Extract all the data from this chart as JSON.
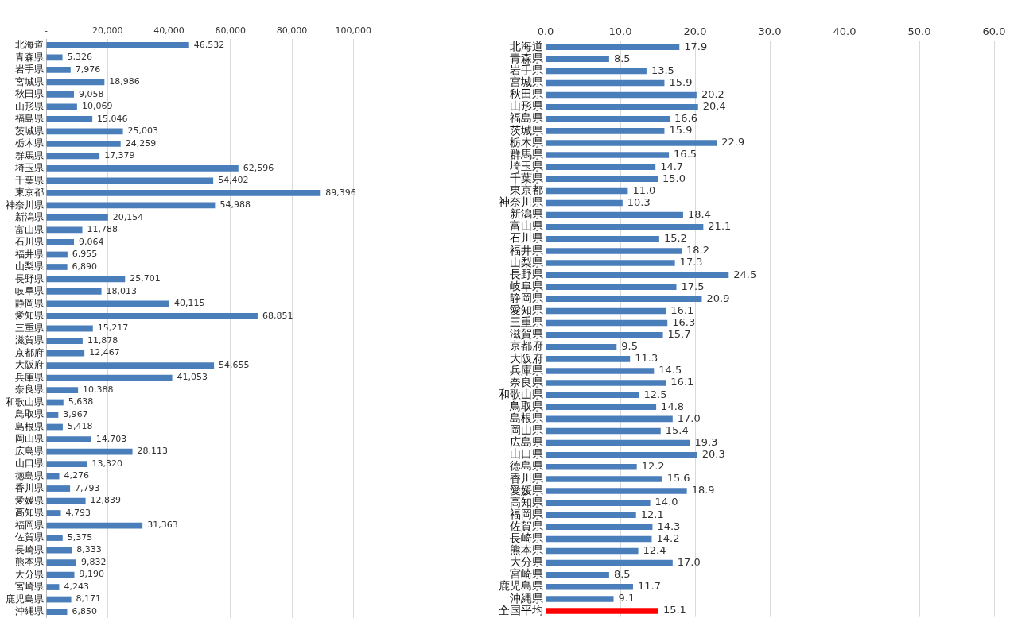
{
  "chart_data": [
    {
      "type": "bar",
      "orientation": "horizontal",
      "grid": "x",
      "color": "#4a7ebb",
      "categories": [
        "北海道",
        "青森県",
        "岩手県",
        "宮城県",
        "秋田県",
        "山形県",
        "福島県",
        "茨城県",
        "栃木県",
        "群馬県",
        "埼玉県",
        "千葉県",
        "東京都",
        "神奈川県",
        "新潟県",
        "富山県",
        "石川県",
        "福井県",
        "山梨県",
        "長野県",
        "岐阜県",
        "静岡県",
        "愛知県",
        "三重県",
        "滋賀県",
        "京都府",
        "大阪府",
        "兵庫県",
        "奈良県",
        "和歌山県",
        "鳥取県",
        "島根県",
        "岡山県",
        "広島県",
        "山口県",
        "徳島県",
        "香川県",
        "愛媛県",
        "高知県",
        "福岡県",
        "佐賀県",
        "長崎県",
        "熊本県",
        "大分県",
        "宮崎県",
        "鹿児島県",
        "沖縄県"
      ],
      "values": [
        46532,
        5326,
        7976,
        18986,
        9058,
        10069,
        15046,
        25003,
        24259,
        17379,
        62596,
        54402,
        89396,
        54988,
        20154,
        11788,
        9064,
        6955,
        6890,
        25701,
        18013,
        40115,
        68851,
        15217,
        11878,
        12467,
        54655,
        41053,
        10388,
        5638,
        3967,
        5418,
        14703,
        28113,
        13320,
        4276,
        7793,
        12839,
        4793,
        31363,
        5375,
        8333,
        9832,
        9190,
        4243,
        8171,
        6850
      ],
      "value_labels": [
        "46,532",
        "5,326",
        "7,976",
        "18,986",
        "9,058",
        "10,069",
        "15,046",
        "25,003",
        "24,259",
        "17,379",
        "62,596",
        "54,402",
        "89,396",
        "54,988",
        "20,154",
        "11,788",
        "9,064",
        "6,955",
        "6,890",
        "25,701",
        "18,013",
        "40,115",
        "68,851",
        "15,217",
        "11,878",
        "12,467",
        "54,655",
        "41,053",
        "10,388",
        "5,638",
        "3,967",
        "5,418",
        "14,703",
        "28,113",
        "13,320",
        "4,276",
        "7,793",
        "12,839",
        "4,793",
        "31,363",
        "5,375",
        "8,333",
        "9,832",
        "9,190",
        "4,243",
        "8,171",
        "6,850"
      ],
      "xlim": [
        0,
        100000
      ],
      "xticks": [
        {
          "value": 0,
          "label": "-"
        },
        {
          "value": 20000,
          "label": "20,000"
        },
        {
          "value": 40000,
          "label": "40,000"
        },
        {
          "value": 60000,
          "label": "60,000"
        },
        {
          "value": 80000,
          "label": "80,000"
        },
        {
          "value": 100000,
          "label": "100,000"
        }
      ]
    },
    {
      "type": "bar",
      "orientation": "horizontal",
      "grid": "x",
      "categories": [
        "北海道",
        "青森県",
        "岩手県",
        "宮城県",
        "秋田県",
        "山形県",
        "福島県",
        "茨城県",
        "栃木県",
        "群馬県",
        "埼玉県",
        "千葉県",
        "東京都",
        "神奈川県",
        "新潟県",
        "富山県",
        "石川県",
        "福井県",
        "山梨県",
        "長野県",
        "岐阜県",
        "静岡県",
        "愛知県",
        "三重県",
        "滋賀県",
        "京都府",
        "大阪府",
        "兵庫県",
        "奈良県",
        "和歌山県",
        "鳥取県",
        "島根県",
        "岡山県",
        "広島県",
        "山口県",
        "徳島県",
        "香川県",
        "愛媛県",
        "高知県",
        "福岡県",
        "佐賀県",
        "長崎県",
        "熊本県",
        "大分県",
        "宮崎県",
        "鹿児島県",
        "沖縄県",
        "全国平均"
      ],
      "values": [
        17.9,
        8.5,
        13.5,
        15.9,
        20.2,
        20.4,
        16.6,
        15.9,
        22.9,
        16.5,
        14.7,
        15.0,
        11.0,
        10.3,
        18.4,
        21.1,
        15.2,
        18.2,
        17.3,
        24.5,
        17.5,
        20.9,
        16.1,
        16.3,
        15.7,
        9.5,
        11.3,
        14.5,
        16.1,
        12.5,
        14.8,
        17.0,
        15.4,
        19.3,
        20.3,
        12.2,
        15.6,
        18.9,
        14.0,
        12.1,
        14.3,
        14.2,
        12.4,
        17.0,
        8.5,
        11.7,
        9.1,
        15.1
      ],
      "value_labels": [
        "17.9",
        "8.5",
        "13.5",
        "15.9",
        "20.2",
        "20.4",
        "16.6",
        "15.9",
        "22.9",
        "16.5",
        "14.7",
        "15.0",
        "11.0",
        "10.3",
        "18.4",
        "21.1",
        "15.2",
        "18.2",
        "17.3",
        "24.5",
        "17.5",
        "20.9",
        "16.1",
        "16.3",
        "15.7",
        "9.5",
        "11.3",
        "14.5",
        "16.1",
        "12.5",
        "14.8",
        "17.0",
        "15.4",
        "19.3",
        "20.3",
        "12.2",
        "15.6",
        "18.9",
        "14.0",
        "12.1",
        "14.3",
        "14.2",
        "12.4",
        "17.0",
        "8.5",
        "11.7",
        "9.1",
        "15.1"
      ],
      "colors": [
        "#4a7ebb",
        "#4a7ebb",
        "#4a7ebb",
        "#4a7ebb",
        "#4a7ebb",
        "#4a7ebb",
        "#4a7ebb",
        "#4a7ebb",
        "#4a7ebb",
        "#4a7ebb",
        "#4a7ebb",
        "#4a7ebb",
        "#4a7ebb",
        "#4a7ebb",
        "#4a7ebb",
        "#4a7ebb",
        "#4a7ebb",
        "#4a7ebb",
        "#4a7ebb",
        "#4a7ebb",
        "#4a7ebb",
        "#4a7ebb",
        "#4a7ebb",
        "#4a7ebb",
        "#4a7ebb",
        "#4a7ebb",
        "#4a7ebb",
        "#4a7ebb",
        "#4a7ebb",
        "#4a7ebb",
        "#4a7ebb",
        "#4a7ebb",
        "#4a7ebb",
        "#4a7ebb",
        "#4a7ebb",
        "#4a7ebb",
        "#4a7ebb",
        "#4a7ebb",
        "#4a7ebb",
        "#4a7ebb",
        "#4a7ebb",
        "#4a7ebb",
        "#4a7ebb",
        "#4a7ebb",
        "#4a7ebb",
        "#4a7ebb",
        "#4a7ebb",
        "#ff0000"
      ],
      "xlim": [
        0,
        60
      ],
      "xticks": [
        {
          "value": 0,
          "label": "0.0"
        },
        {
          "value": 10,
          "label": "10.0"
        },
        {
          "value": 20,
          "label": "20.0"
        },
        {
          "value": 30,
          "label": "30.0"
        },
        {
          "value": 40,
          "label": "40.0"
        },
        {
          "value": 50,
          "label": "50.0"
        },
        {
          "value": 60,
          "label": "60.0"
        }
      ]
    }
  ]
}
